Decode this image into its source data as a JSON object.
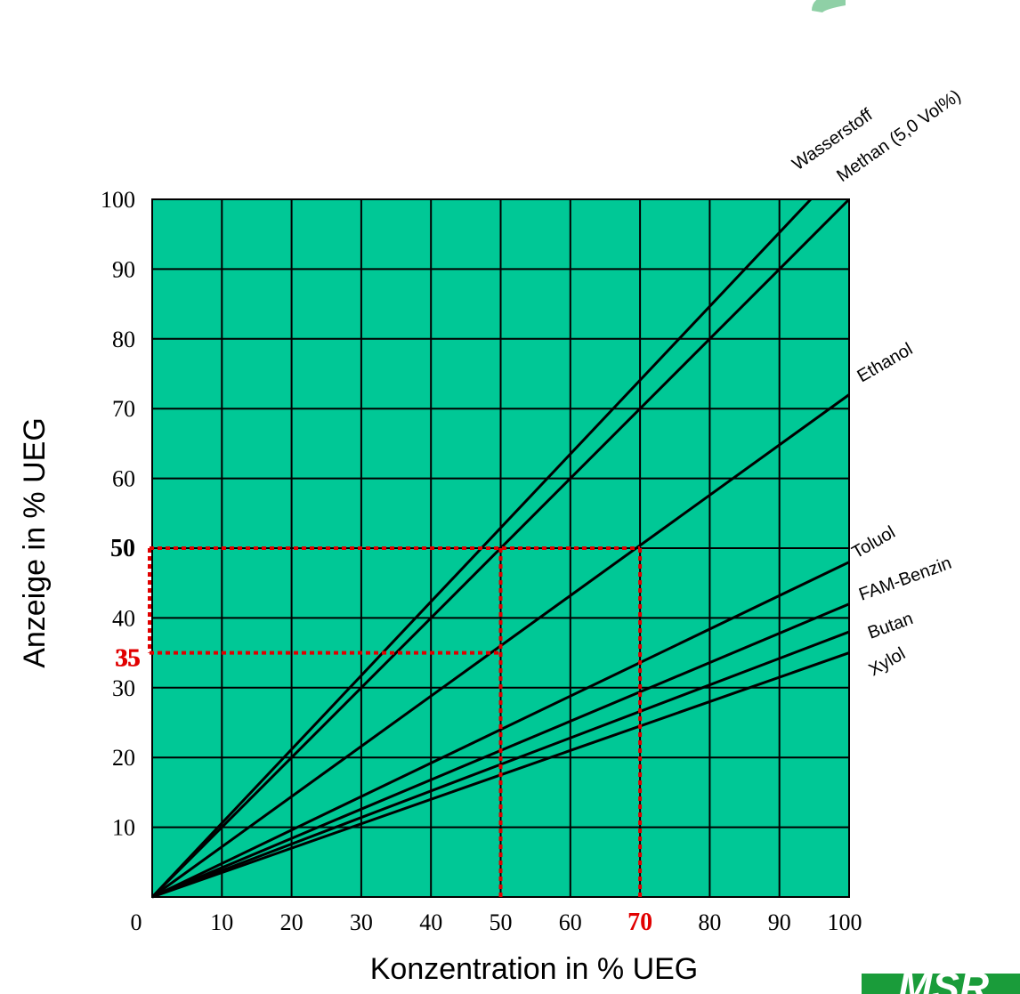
{
  "chart_data": {
    "type": "line",
    "title": "",
    "xlabel": "Konzentration in % UEG",
    "ylabel": "Anzeige in % UEG",
    "xlim": [
      0,
      100
    ],
    "ylim": [
      0,
      100
    ],
    "grid": true,
    "plot_background": "#00c896",
    "line_color": "#000000",
    "x_tick_labels": [
      "0",
      "10",
      "20",
      "30",
      "40",
      "50",
      "60",
      "70",
      "80",
      "90",
      "100"
    ],
    "y_tick_labels": [
      "10",
      "20",
      "30",
      "40",
      "50",
      "60",
      "70",
      "80",
      "90",
      "100"
    ],
    "series": [
      {
        "name": "Wasserstoff",
        "x": [
          0,
          94.5
        ],
        "y": [
          0,
          100
        ]
      },
      {
        "name": "Methan (5,0 Vol%)",
        "x": [
          0,
          100
        ],
        "y": [
          0,
          100
        ]
      },
      {
        "name": "Ethanol",
        "x": [
          0,
          100
        ],
        "y": [
          0,
          72
        ]
      },
      {
        "name": "Toluol",
        "x": [
          0,
          100
        ],
        "y": [
          0,
          48
        ]
      },
      {
        "name": "FAM-Benzin",
        "x": [
          0,
          100
        ],
        "y": [
          0,
          42
        ]
      },
      {
        "name": "Butan",
        "x": [
          0,
          100
        ],
        "y": [
          0,
          38
        ]
      },
      {
        "name": "Xylol",
        "x": [
          0,
          100
        ],
        "y": [
          0,
          35
        ]
      }
    ],
    "annotations": {
      "color": "#e10000",
      "guides": [
        {
          "x": 50,
          "y": 50
        },
        {
          "x": 50,
          "y": 35
        },
        {
          "x": 70,
          "y": 50
        }
      ],
      "x_highlight": {
        "value": 70,
        "label": "70"
      },
      "y_highlight_bold": {
        "value": 50,
        "label": "50"
      },
      "y_highlight_red": [
        {
          "value": 35,
          "label": "35"
        },
        {
          "value": 35,
          "label": "35"
        }
      ]
    }
  },
  "logo": {
    "text": "MSR",
    "color": "#1a9c3a"
  }
}
